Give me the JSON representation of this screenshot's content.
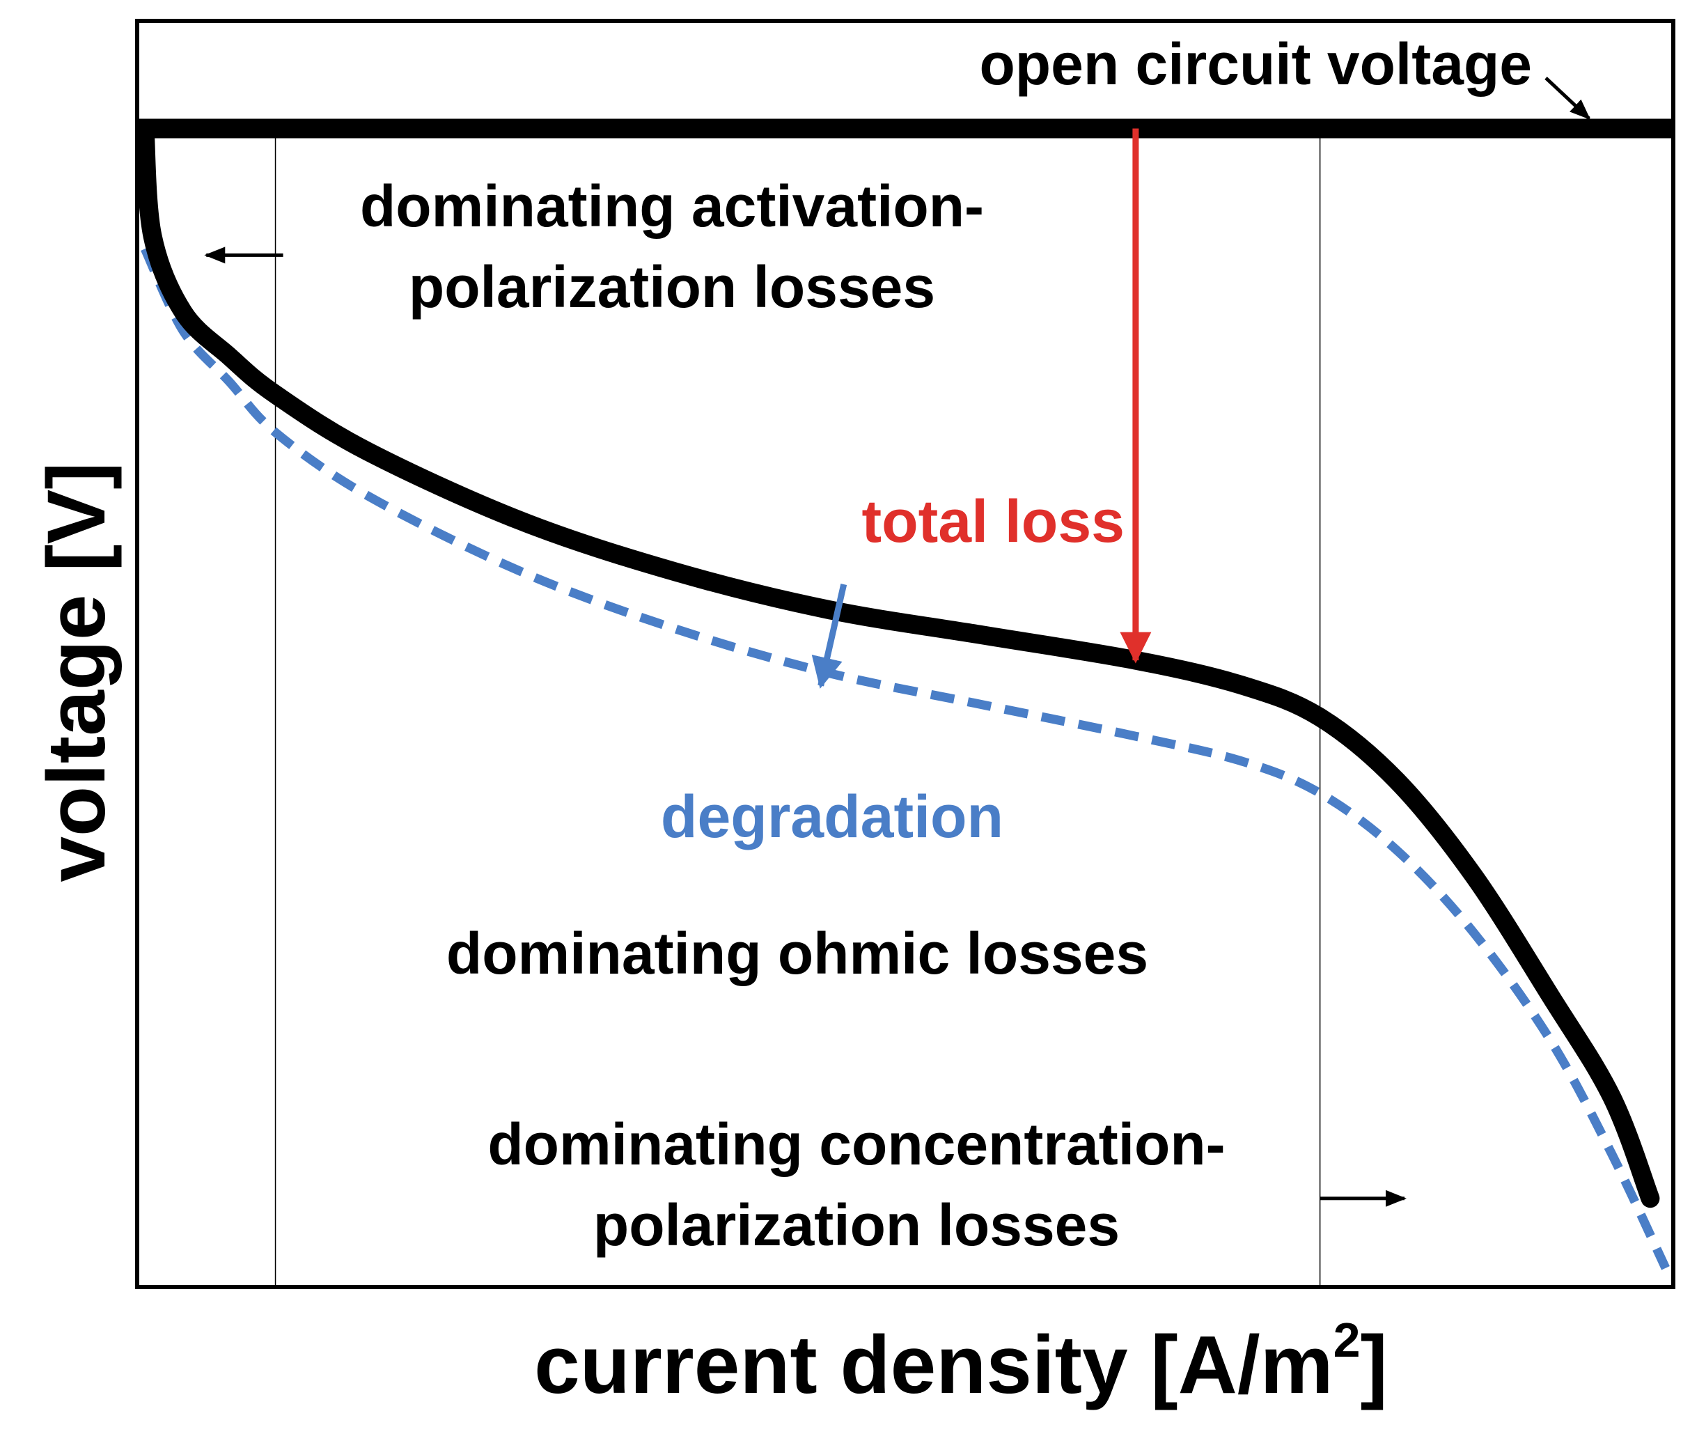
{
  "chart_data": {
    "type": "line",
    "title": "",
    "xlabel": "current density [A/m",
    "xlabel_superscript": "2",
    "xlabel_suffix": "]",
    "ylabel": "voltage [V]",
    "x_ticks": [],
    "y_ticks": [],
    "grid": false,
    "xlim": [
      0,
      100
    ],
    "ylim": [
      0,
      100
    ],
    "region_boundaries_x": [
      9,
      77
    ],
    "ocv_level": 91.5,
    "series": [
      {
        "name": "initial polarization curve",
        "style": "solid",
        "color": "#000000",
        "points": [
          [
            0.5,
            91.5
          ],
          [
            1,
            83
          ],
          [
            3,
            77
          ],
          [
            6,
            73.5
          ],
          [
            9,
            70.5
          ],
          [
            15,
            66
          ],
          [
            25,
            60.5
          ],
          [
            35,
            56.5
          ],
          [
            45,
            53.5
          ],
          [
            55,
            51.5
          ],
          [
            65,
            49.5
          ],
          [
            72,
            47.5
          ],
          [
            77,
            45
          ],
          [
            82,
            40
          ],
          [
            87,
            32.5
          ],
          [
            92,
            23
          ],
          [
            96,
            15
          ],
          [
            98.5,
            7
          ]
        ]
      },
      {
        "name": "degraded polarization curve",
        "style": "dashed",
        "color": "#4a7ec7",
        "points": [
          [
            0.5,
            82
          ],
          [
            3,
            75.5
          ],
          [
            6,
            71.5
          ],
          [
            9,
            67.5
          ],
          [
            15,
            62.5
          ],
          [
            25,
            56.5
          ],
          [
            35,
            52
          ],
          [
            45,
            48.5
          ],
          [
            55,
            46
          ],
          [
            65,
            43.5
          ],
          [
            72,
            41.5
          ],
          [
            77,
            39
          ],
          [
            82,
            34.5
          ],
          [
            87,
            28
          ],
          [
            92,
            19.5
          ],
          [
            96,
            10.5
          ],
          [
            99.5,
            1.5
          ]
        ]
      }
    ],
    "annotations": {
      "ocv": "open circuit voltage",
      "activation": [
        "dominating activation-",
        "polarization losses"
      ],
      "ohmic": "dominating ohmic losses",
      "concentration": [
        "dominating concentration-",
        "polarization losses"
      ],
      "total_loss": "total loss",
      "degradation": "degradation"
    },
    "arrows": {
      "total_loss": {
        "x": 65,
        "from": 91.5,
        "to": 49.5
      },
      "degradation": {
        "from": [
          46,
          55.5
        ],
        "to": [
          44.5,
          47.5
        ]
      },
      "activation_region": {
        "from": 9.5,
        "to": 4.5,
        "y": 81.5
      },
      "concentration_region": {
        "from": 77,
        "to": 82.5,
        "y": 7
      }
    },
    "colors": {
      "axis": "#000000",
      "curve": "#000000",
      "degraded": "#4a7ec7",
      "total_loss": "#e0302b",
      "divider": "#000000"
    }
  }
}
